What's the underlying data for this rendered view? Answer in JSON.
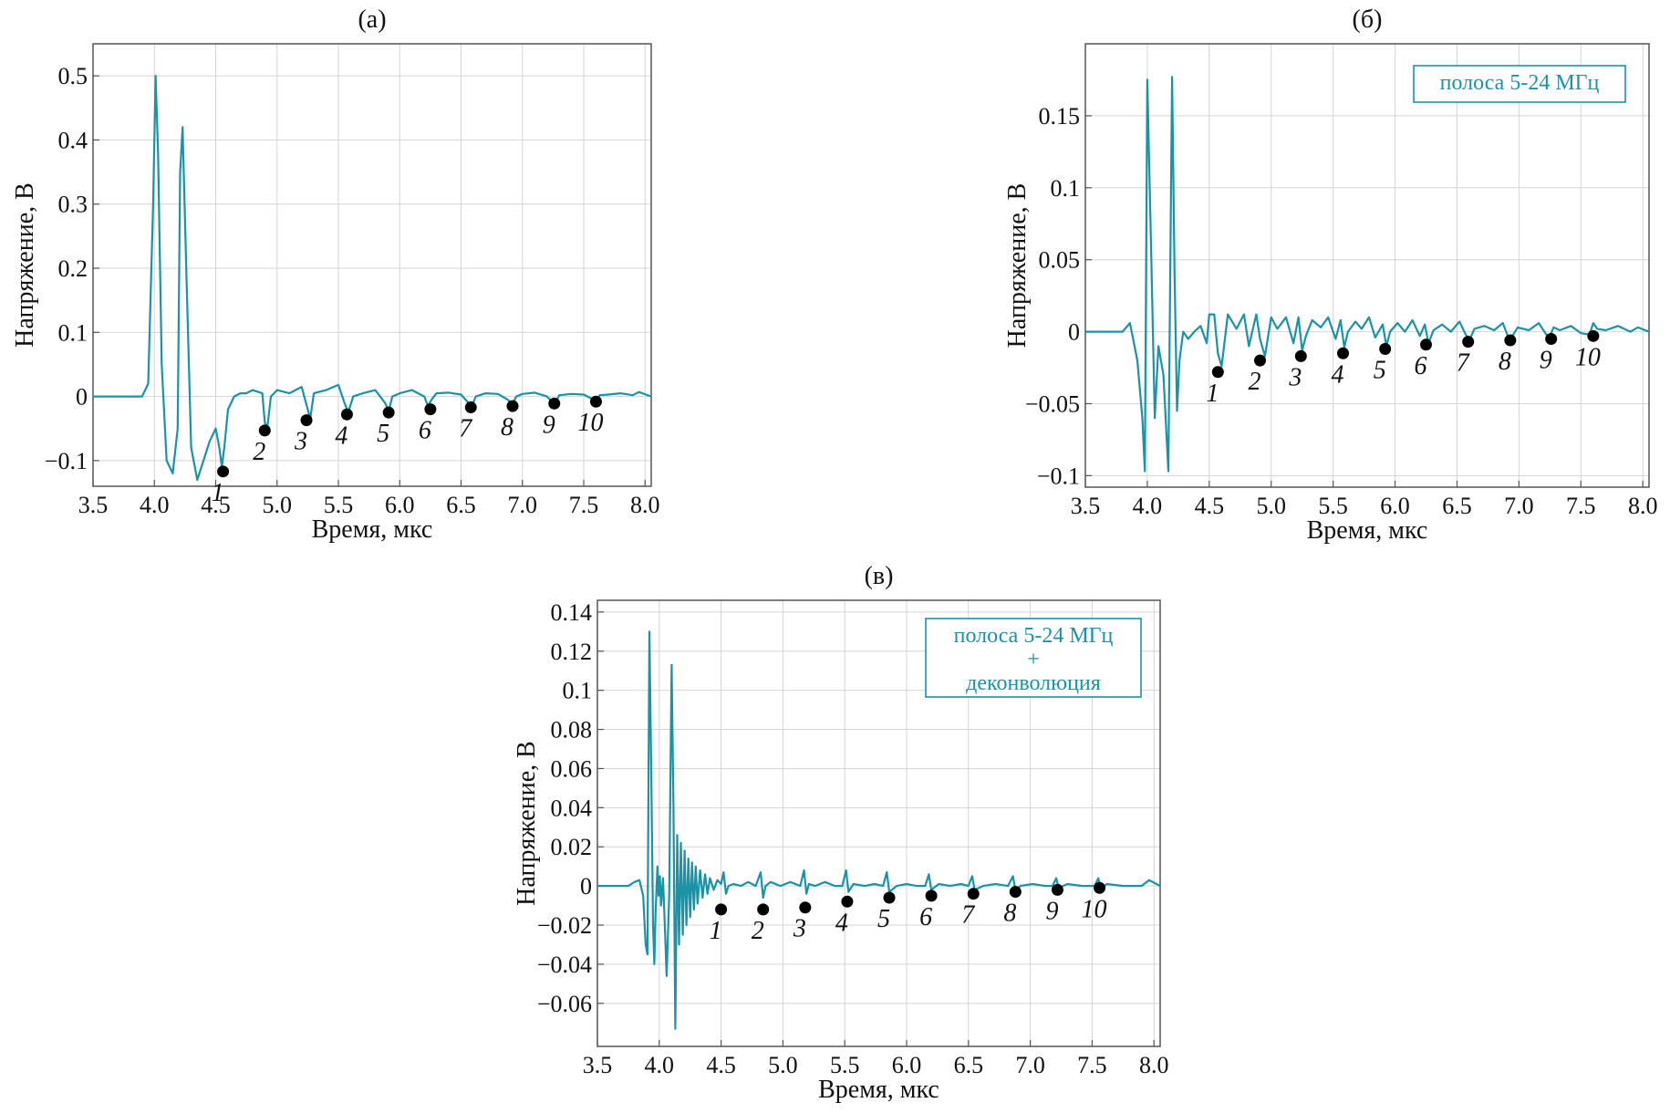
{
  "colors": {
    "signal": "#1a93a6",
    "grid": "#d4d4d4",
    "axis": "#555555",
    "marker": "#000000"
  },
  "chart_data": [
    {
      "id": "a",
      "type": "line",
      "title": "(а)",
      "xlabel": "Время, мкс",
      "ylabel": "Напряжение, В",
      "xlim": [
        3.5,
        8.05
      ],
      "ylim": [
        -0.14,
        0.55
      ],
      "xticks": [
        3.5,
        4.0,
        4.5,
        5.0,
        5.5,
        6.0,
        6.5,
        7.0,
        7.5,
        8.0
      ],
      "xtick_labels": [
        "3.5",
        "4.0",
        "4.5",
        "5.0",
        "5.5",
        "6.0",
        "6.5",
        "7.0",
        "7.5",
        "8.0"
      ],
      "yticks": [
        -0.1,
        0,
        0.1,
        0.2,
        0.3,
        0.4,
        0.5
      ],
      "ytick_labels": [
        "−0.1",
        "0",
        "0.1",
        "0.2",
        "0.3",
        "0.4",
        "0.5"
      ],
      "legend": "",
      "series": [
        {
          "name": "signal",
          "x": [
            3.5,
            3.9,
            3.95,
            3.99,
            4.01,
            4.03,
            4.06,
            4.1,
            4.15,
            4.19,
            4.21,
            4.23,
            4.26,
            4.3,
            4.35,
            4.4,
            4.45,
            4.5,
            4.53,
            4.55,
            4.57,
            4.6,
            4.65,
            4.7,
            4.75,
            4.8,
            4.88,
            4.9,
            4.92,
            4.95,
            5.0,
            5.1,
            5.2,
            5.25,
            5.27,
            5.3,
            5.4,
            5.5,
            5.55,
            5.58,
            5.62,
            5.7,
            5.8,
            5.88,
            5.91,
            5.94,
            6.0,
            6.1,
            6.2,
            6.23,
            6.26,
            6.3,
            6.4,
            6.5,
            6.56,
            6.59,
            6.62,
            6.7,
            6.8,
            6.88,
            6.92,
            6.95,
            7.0,
            7.1,
            7.2,
            7.24,
            7.27,
            7.3,
            7.4,
            7.5,
            7.57,
            7.6,
            7.63,
            7.7,
            7.8,
            7.9,
            7.95,
            8.05
          ],
          "y": [
            0,
            0,
            0.02,
            0.3,
            0.5,
            0.38,
            0.05,
            -0.1,
            -0.12,
            -0.05,
            0.35,
            0.42,
            0.2,
            -0.08,
            -0.13,
            -0.1,
            -0.07,
            -0.05,
            -0.08,
            -0.11,
            -0.08,
            -0.02,
            0.0,
            0.005,
            0.005,
            0.01,
            0.005,
            -0.04,
            -0.05,
            0.0,
            0.01,
            0.005,
            0.015,
            -0.02,
            -0.035,
            0.005,
            0.01,
            0.018,
            -0.01,
            -0.025,
            0.0,
            0.005,
            0.01,
            -0.01,
            -0.022,
            0.0,
            0.005,
            0.01,
            0.0,
            -0.015,
            -0.005,
            0.005,
            0.006,
            0.003,
            -0.01,
            -0.014,
            0.0,
            0.005,
            0.004,
            -0.005,
            -0.012,
            0.0,
            0.004,
            0.006,
            0.0,
            -0.008,
            -0.01,
            0.002,
            0.004,
            0.003,
            -0.004,
            -0.008,
            0.002,
            0.003,
            0.005,
            0.002,
            0.007,
            0.0
          ]
        }
      ],
      "markers": {
        "x": [
          4.56,
          4.9,
          5.24,
          5.57,
          5.91,
          6.25,
          6.58,
          6.92,
          7.26,
          7.6
        ],
        "y": [
          -0.117,
          -0.053,
          -0.037,
          -0.028,
          -0.025,
          -0.02,
          -0.017,
          -0.015,
          -0.011,
          -0.008
        ],
        "labels": [
          "1",
          "2",
          "3",
          "4",
          "5",
          "6",
          "7",
          "8",
          "9",
          "10"
        ]
      }
    },
    {
      "id": "b",
      "type": "line",
      "title": "(б)",
      "xlabel": "Время, мкс",
      "ylabel": "Напряжение, В",
      "xlim": [
        3.5,
        8.05
      ],
      "ylim": [
        -0.108,
        0.2
      ],
      "xticks": [
        3.5,
        4.0,
        4.5,
        5.0,
        5.5,
        6.0,
        6.5,
        7.0,
        7.5,
        8.0
      ],
      "xtick_labels": [
        "3.5",
        "4.0",
        "4.5",
        "5.0",
        "5.5",
        "6.0",
        "6.5",
        "7.0",
        "7.5",
        "8.0"
      ],
      "yticks": [
        -0.1,
        -0.05,
        0,
        0.05,
        0.1,
        0.15
      ],
      "ytick_labels": [
        "−0.1",
        "−0.05",
        "0",
        "0.05",
        "0.1",
        "0.15"
      ],
      "legend": "полоса 5-24 МГц",
      "series": [
        {
          "name": "signal",
          "x": [
            3.5,
            3.8,
            3.86,
            3.92,
            3.96,
            3.98,
            4.0,
            4.03,
            4.06,
            4.09,
            4.13,
            4.17,
            4.2,
            4.22,
            4.24,
            4.26,
            4.29,
            4.33,
            4.38,
            4.43,
            4.48,
            4.5,
            4.54,
            4.57,
            4.6,
            4.65,
            4.72,
            4.78,
            4.82,
            4.88,
            4.91,
            4.95,
            5.0,
            5.05,
            5.12,
            5.18,
            5.22,
            5.25,
            5.28,
            5.33,
            5.4,
            5.46,
            5.52,
            5.56,
            5.59,
            5.62,
            5.68,
            5.73,
            5.79,
            5.84,
            5.9,
            5.93,
            5.96,
            6.02,
            6.08,
            6.14,
            6.2,
            6.24,
            6.27,
            6.31,
            6.38,
            6.45,
            6.52,
            6.57,
            6.6,
            6.64,
            6.72,
            6.8,
            6.87,
            6.91,
            6.94,
            6.99,
            7.08,
            7.16,
            7.22,
            7.25,
            7.28,
            7.33,
            7.42,
            7.5,
            7.57,
            7.6,
            7.63,
            7.7,
            7.8,
            7.9,
            7.96,
            8.05
          ],
          "y": [
            0,
            0,
            0.006,
            -0.02,
            -0.06,
            -0.097,
            0.175,
            0.06,
            -0.06,
            -0.01,
            -0.03,
            -0.097,
            0.177,
            0.04,
            -0.055,
            -0.02,
            0.0,
            -0.005,
            0.0,
            0.004,
            -0.008,
            0.012,
            0.012,
            -0.015,
            -0.024,
            0.012,
            0.002,
            0.012,
            -0.01,
            0.012,
            -0.005,
            -0.017,
            0.01,
            0.002,
            0.01,
            -0.008,
            0.01,
            -0.013,
            -0.003,
            0.008,
            0.003,
            0.01,
            -0.005,
            0.008,
            -0.011,
            0.0,
            0.007,
            0.002,
            0.01,
            -0.004,
            0.005,
            -0.01,
            0.0,
            0.006,
            0.0,
            0.008,
            -0.003,
            0.005,
            -0.008,
            0.001,
            0.005,
            0.0,
            0.007,
            -0.002,
            -0.006,
            0.002,
            0.004,
            0.001,
            0.006,
            -0.003,
            -0.004,
            0.003,
            0.001,
            0.006,
            -0.002,
            -0.003,
            0.003,
            0.001,
            0.004,
            -0.001,
            -0.002,
            0.006,
            0.002,
            0.001,
            0.004,
            0.0,
            0.003,
            0.0
          ]
        }
      ],
      "markers": {
        "x": [
          4.57,
          4.91,
          5.24,
          5.58,
          5.92,
          6.25,
          6.59,
          6.93,
          7.26,
          7.6
        ],
        "y": [
          -0.028,
          -0.02,
          -0.017,
          -0.015,
          -0.012,
          -0.009,
          -0.007,
          -0.006,
          -0.005,
          -0.003
        ],
        "labels": [
          "1",
          "2",
          "3",
          "4",
          "5",
          "6",
          "7",
          "8",
          "9",
          "10"
        ]
      }
    },
    {
      "id": "c",
      "type": "line",
      "title": "(в)",
      "xlabel": "Время, мкс",
      "ylabel": "Напряжение, В",
      "xlim": [
        3.5,
        8.05
      ],
      "ylim": [
        -0.082,
        0.146
      ],
      "xticks": [
        3.5,
        4.0,
        4.5,
        5.0,
        5.5,
        6.0,
        6.5,
        7.0,
        7.5,
        8.0
      ],
      "xtick_labels": [
        "3.5",
        "4.0",
        "4.5",
        "5.0",
        "5.5",
        "6.0",
        "6.5",
        "7.0",
        "7.5",
        "8.0"
      ],
      "yticks": [
        -0.06,
        -0.04,
        -0.02,
        0,
        0.02,
        0.04,
        0.06,
        0.08,
        0.1,
        0.12,
        0.14
      ],
      "ytick_labels": [
        "−0.06",
        "−0.04",
        "−0.02",
        "0",
        "0.02",
        "0.04",
        "0.06",
        "0.08",
        "0.1",
        "0.12",
        "0.14"
      ],
      "legend": "полоса 5-24 МГц\n+\nдеконволюция",
      "series": [
        {
          "name": "signal",
          "x": [
            3.5,
            3.75,
            3.8,
            3.84,
            3.87,
            3.89,
            3.905,
            3.92,
            3.935,
            3.95,
            3.96,
            3.97,
            3.985,
            3.995,
            4.005,
            4.015,
            4.03,
            4.045,
            4.06,
            4.08,
            4.1,
            4.115,
            4.13,
            4.145,
            4.16,
            4.175,
            4.19,
            4.205,
            4.22,
            4.235,
            4.25,
            4.265,
            4.28,
            4.295,
            4.31,
            4.33,
            4.35,
            4.37,
            4.39,
            4.41,
            4.44,
            4.47,
            4.5,
            4.52,
            4.54,
            4.56,
            4.6,
            4.66,
            4.72,
            4.78,
            4.82,
            4.84,
            4.86,
            4.9,
            4.98,
            5.06,
            5.14,
            5.17,
            5.19,
            5.21,
            5.26,
            5.34,
            5.42,
            5.48,
            5.51,
            5.53,
            5.57,
            5.66,
            5.74,
            5.81,
            5.84,
            5.86,
            5.92,
            6.0,
            6.08,
            6.15,
            6.18,
            6.2,
            6.26,
            6.35,
            6.44,
            6.5,
            6.53,
            6.55,
            6.62,
            6.72,
            6.82,
            6.86,
            6.88,
            6.92,
            7.02,
            7.12,
            7.18,
            7.21,
            7.23,
            7.3,
            7.42,
            7.52,
            7.55,
            7.57,
            7.62,
            7.75,
            7.9,
            7.96,
            8.05
          ],
          "y": [
            0,
            0,
            0.002,
            0.003,
            -0.005,
            -0.03,
            -0.035,
            0.13,
            0.06,
            -0.02,
            -0.04,
            -0.015,
            0.01,
            -0.005,
            0.005,
            -0.01,
            0.004,
            -0.02,
            -0.046,
            -0.005,
            0.113,
            0.04,
            -0.073,
            0.026,
            -0.03,
            0.022,
            -0.025,
            0.018,
            -0.02,
            0.014,
            -0.016,
            0.012,
            -0.012,
            0.01,
            -0.009,
            0.008,
            -0.006,
            0.006,
            -0.004,
            0.004,
            -0.002,
            0.003,
            0.001,
            0.007,
            -0.004,
            0.0,
            0.001,
            0.0,
            0.002,
            0.0,
            0.007,
            -0.006,
            0.0,
            0.002,
            0.0,
            0.002,
            0.0,
            0.008,
            -0.004,
            0.001,
            0.0,
            0.002,
            0.0,
            0.0,
            0.008,
            -0.003,
            0.001,
            0.0,
            0.001,
            0.0,
            0.007,
            -0.003,
            0.0,
            0.001,
            0.0,
            0.0,
            0.006,
            -0.002,
            0.001,
            0.0,
            0.001,
            0.0,
            0.005,
            -0.002,
            0.0,
            0.001,
            0.0,
            0.005,
            -0.002,
            0.0,
            0.001,
            0.0,
            0.0,
            0.004,
            -0.001,
            0.001,
            0.0,
            0.0,
            0.004,
            -0.001,
            0.001,
            0.0,
            0.0,
            0.003,
            0.0
          ]
        }
      ],
      "markers": {
        "x": [
          4.5,
          4.84,
          5.18,
          5.52,
          5.86,
          6.2,
          6.54,
          6.88,
          7.22,
          7.56
        ],
        "y": [
          -0.012,
          -0.012,
          -0.011,
          -0.008,
          -0.006,
          -0.005,
          -0.004,
          -0.003,
          -0.002,
          -0.001
        ],
        "labels": [
          "1",
          "2",
          "3",
          "4",
          "5",
          "6",
          "7",
          "8",
          "9",
          "10"
        ]
      }
    }
  ]
}
